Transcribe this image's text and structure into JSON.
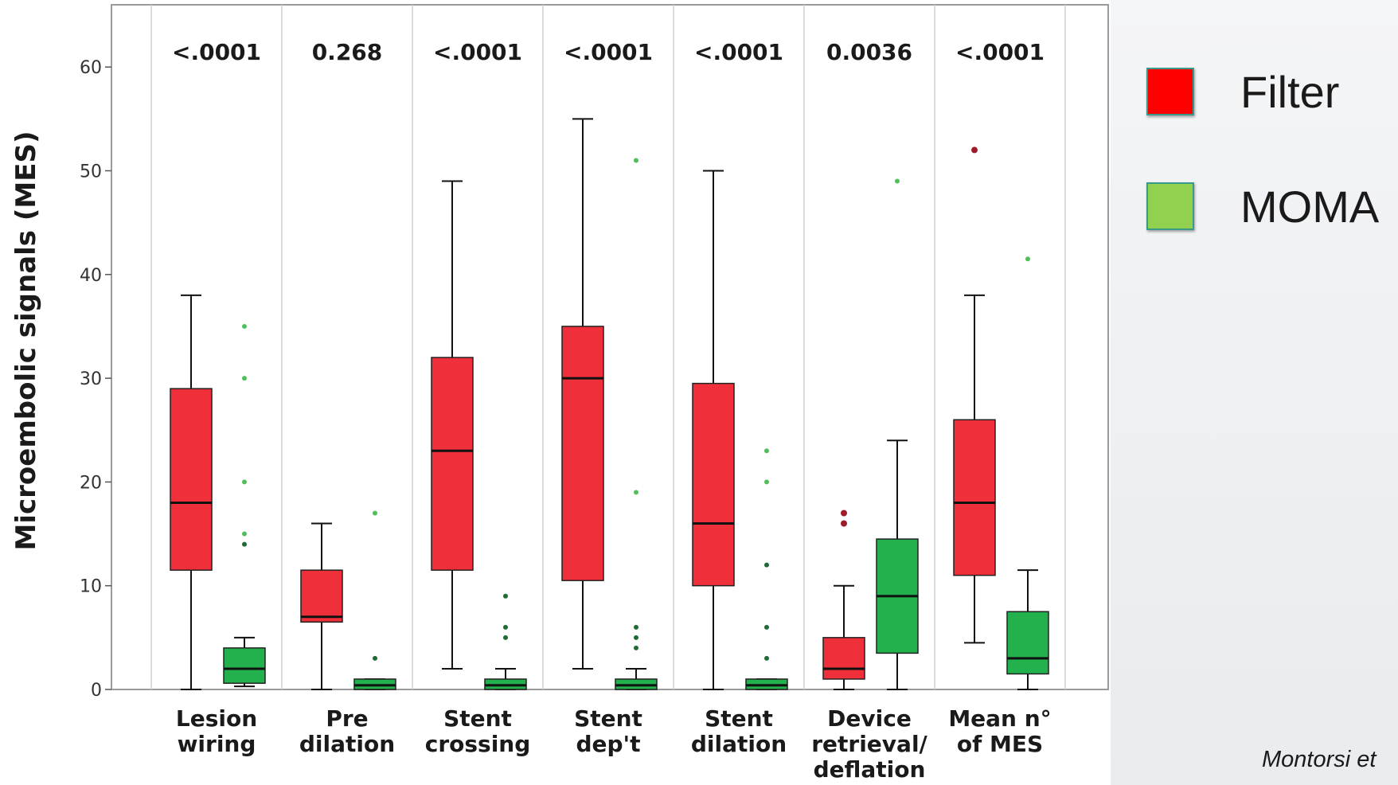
{
  "legend": {
    "items": [
      {
        "label": "Filter",
        "color": "#ff0000"
      },
      {
        "label": "MOMA",
        "color": "#92d050"
      }
    ]
  },
  "citation": "Montorsi et",
  "chart_data": {
    "type": "box",
    "ylabel": "Microembolic signals (MES)",
    "ylim": [
      0,
      66
    ],
    "yticks": [
      0,
      10,
      20,
      30,
      40,
      50,
      60
    ],
    "grid": "vertical separators between groups",
    "series": [
      {
        "name": "Filter",
        "color": "#ef2f3a"
      },
      {
        "name": "MOMA",
        "color": "#22b14c"
      }
    ],
    "groups": [
      {
        "label": [
          "Lesion",
          "wiring"
        ],
        "p_value": "<.0001",
        "boxes": [
          {
            "series": "Filter",
            "min": 0,
            "q1": 11.5,
            "median": 18,
            "q3": 29,
            "max": 38,
            "outliers": []
          },
          {
            "series": "MOMA",
            "min": 0.3,
            "q1": 0.6,
            "median": 2,
            "q3": 4,
            "max": 5,
            "outliers": [
              14,
              15,
              20,
              30,
              35
            ]
          }
        ]
      },
      {
        "label": [
          "Pre",
          "dilation"
        ],
        "p_value": "0.268",
        "boxes": [
          {
            "series": "Filter",
            "min": 0,
            "q1": 6.5,
            "median": 7,
            "q3": 11.5,
            "max": 16,
            "outliers": []
          },
          {
            "series": "MOMA",
            "min": 0,
            "q1": 0,
            "median": 0.4,
            "q3": 1,
            "max": 1,
            "outliers": [
              3,
              17
            ]
          }
        ]
      },
      {
        "label": [
          "Stent",
          "crossing"
        ],
        "p_value": "<.0001",
        "boxes": [
          {
            "series": "Filter",
            "min": 2,
            "q1": 11.5,
            "median": 23,
            "q3": 32,
            "max": 49,
            "outliers": []
          },
          {
            "series": "MOMA",
            "min": 0,
            "q1": 0,
            "median": 0.4,
            "q3": 1,
            "max": 2,
            "outliers": [
              5,
              6,
              9
            ]
          }
        ]
      },
      {
        "label": [
          "Stent",
          "dep't"
        ],
        "p_value": "<.0001",
        "boxes": [
          {
            "series": "Filter",
            "min": 2,
            "q1": 10.5,
            "median": 30,
            "q3": 35,
            "max": 55,
            "outliers": []
          },
          {
            "series": "MOMA",
            "min": 0,
            "q1": 0,
            "median": 0.4,
            "q3": 1,
            "max": 2,
            "outliers": [
              4,
              5,
              6,
              19,
              51
            ]
          }
        ]
      },
      {
        "label": [
          "Stent",
          "dilation"
        ],
        "p_value": "<.0001",
        "boxes": [
          {
            "series": "Filter",
            "min": 0,
            "q1": 10,
            "median": 16,
            "q3": 29.5,
            "max": 50,
            "outliers": []
          },
          {
            "series": "MOMA",
            "min": 0,
            "q1": 0,
            "median": 0.4,
            "q3": 1,
            "max": 1,
            "outliers": [
              3,
              6,
              12,
              20,
              23
            ]
          }
        ]
      },
      {
        "label": [
          "Device",
          "retrieval/",
          "deflation"
        ],
        "p_value": "0.0036",
        "boxes": [
          {
            "series": "Filter",
            "min": 0,
            "q1": 1,
            "median": 2,
            "q3": 5,
            "max": 10,
            "outliers": [
              16,
              17
            ]
          },
          {
            "series": "MOMA",
            "min": 0,
            "q1": 3.5,
            "median": 9,
            "q3": 14.5,
            "max": 24,
            "outliers": [
              49
            ]
          }
        ]
      },
      {
        "label": [
          "Mean n°",
          "of MES"
        ],
        "p_value": "<.0001",
        "boxes": [
          {
            "series": "Filter",
            "min": 4.5,
            "q1": 11,
            "median": 18,
            "q3": 26,
            "max": 38,
            "outliers": [
              52
            ]
          },
          {
            "series": "MOMA",
            "min": 0,
            "q1": 1.5,
            "median": 3,
            "q3": 7.5,
            "max": 11.5,
            "outliers": [
              41.5
            ]
          }
        ]
      }
    ]
  }
}
